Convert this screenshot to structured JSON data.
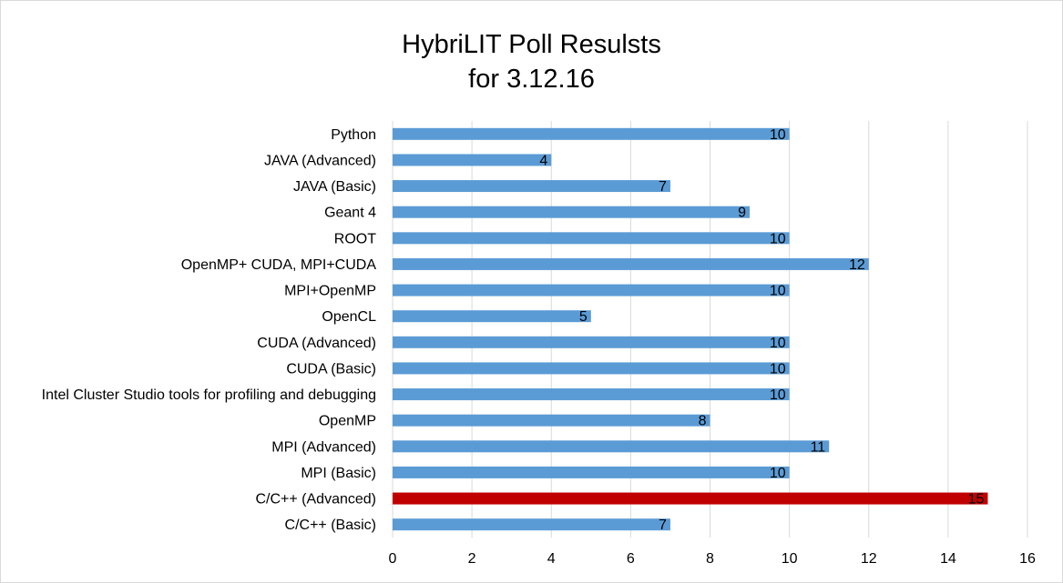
{
  "chart_data": {
    "type": "bar",
    "orientation": "horizontal",
    "title": [
      "HybriLIT Poll Resulsts",
      "for 3.12.16"
    ],
    "categories": [
      "Python",
      "JAVA (Advanced)",
      "JAVA (Basic)",
      "Geant 4",
      "ROOT",
      "OpenMP+ CUDA, MPI+CUDA",
      "MPI+OpenMP",
      "OpenCL",
      "CUDA (Advanced)",
      "CUDA (Basic)",
      "Intel Cluster Studio tools for profiling and debugging",
      "OpenMP",
      "MPI (Advanced)",
      "MPI (Basic)",
      "C/C++ (Advanced)",
      "C/C++ (Basic)"
    ],
    "values": [
      10,
      4,
      7,
      9,
      10,
      12,
      10,
      5,
      10,
      10,
      10,
      8,
      11,
      10,
      15,
      7
    ],
    "bar_colors": [
      "#5b9bd5",
      "#5b9bd5",
      "#5b9bd5",
      "#5b9bd5",
      "#5b9bd5",
      "#5b9bd5",
      "#5b9bd5",
      "#5b9bd5",
      "#5b9bd5",
      "#5b9bd5",
      "#5b9bd5",
      "#5b9bd5",
      "#5b9bd5",
      "#5b9bd5",
      "#c00000",
      "#5b9bd5"
    ],
    "xlim": [
      0,
      16
    ],
    "xticks": [
      0,
      2,
      4,
      6,
      8,
      10,
      12,
      14,
      16
    ],
    "grid": "vertical",
    "data_labels": true
  }
}
